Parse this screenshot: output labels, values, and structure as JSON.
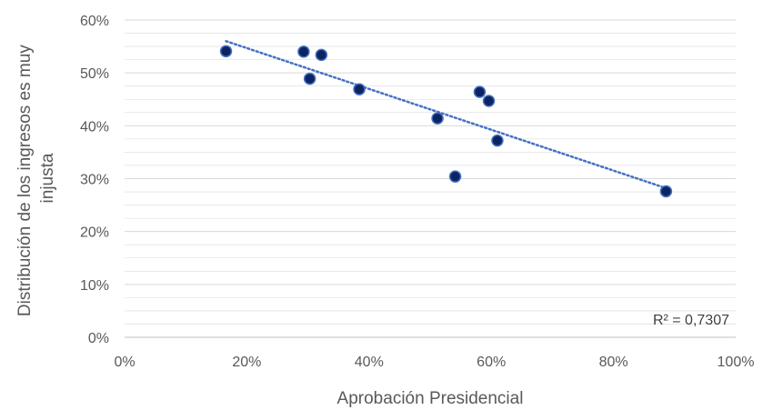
{
  "chart_data": {
    "type": "scatter",
    "xlabel": "Aprobación Presidencial",
    "ylabel_lines": [
      "Distribución de los ingresos es muy",
      "injusta"
    ],
    "xlim": [
      0,
      100
    ],
    "ylim": [
      0,
      60
    ],
    "x_ticks": [
      0,
      20,
      40,
      60,
      80,
      100
    ],
    "y_ticks": [
      0,
      10,
      20,
      30,
      40,
      50,
      60
    ],
    "x_tick_labels": [
      "0%",
      "20%",
      "40%",
      "60%",
      "80%",
      "100%"
    ],
    "y_tick_labels": [
      "0%",
      "10%",
      "20%",
      "30%",
      "40%",
      "50%",
      "60%"
    ],
    "grid": true,
    "points": [
      {
        "x": 16.6,
        "y": 54.1
      },
      {
        "x": 29.3,
        "y": 54.0
      },
      {
        "x": 32.2,
        "y": 53.4
      },
      {
        "x": 30.3,
        "y": 48.9
      },
      {
        "x": 38.4,
        "y": 46.9
      },
      {
        "x": 51.2,
        "y": 41.4
      },
      {
        "x": 58.1,
        "y": 46.4
      },
      {
        "x": 59.6,
        "y": 44.7
      },
      {
        "x": 61.0,
        "y": 37.2
      },
      {
        "x": 54.1,
        "y": 30.4
      },
      {
        "x": 88.6,
        "y": 27.6
      }
    ],
    "trendline": {
      "type": "linear",
      "style": "dotted",
      "from": [
        16.6,
        56.0
      ],
      "to": [
        88.6,
        28.2
      ]
    },
    "r2_label": "R² = 0,7307",
    "colors": {
      "marker_fill": "#0e2462",
      "marker_stroke": "#4472c4",
      "trendline": "#4472c4",
      "grid": "#d9d9d9",
      "axis": "#bfbfbf"
    }
  }
}
